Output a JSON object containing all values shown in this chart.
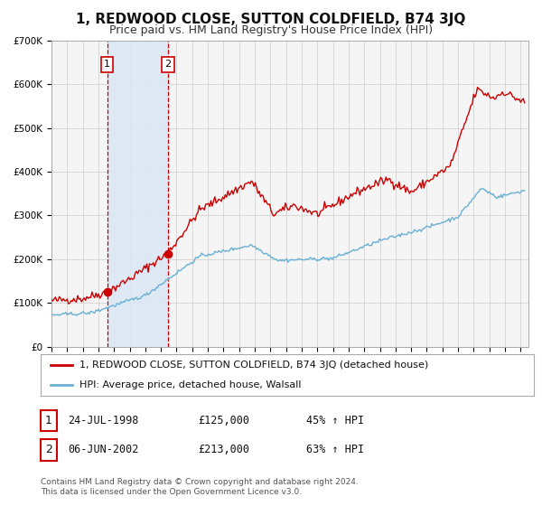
{
  "title": "1, REDWOOD CLOSE, SUTTON COLDFIELD, B74 3JQ",
  "subtitle": "Price paid vs. HM Land Registry's House Price Index (HPI)",
  "ylim": [
    0,
    700000
  ],
  "yticks": [
    0,
    100000,
    200000,
    300000,
    400000,
    500000,
    600000,
    700000
  ],
  "ytick_labels": [
    "£0",
    "£100K",
    "£200K",
    "£300K",
    "£400K",
    "£500K",
    "£600K",
    "£700K"
  ],
  "xlim_start": 1995.0,
  "xlim_end": 2025.5,
  "background_color": "#ffffff",
  "plot_bg_color": "#f5f5f5",
  "grid_color": "#cccccc",
  "sale1_date": 1998.56,
  "sale1_price": 125000,
  "sale1_label": "1",
  "sale2_date": 2002.43,
  "sale2_price": 213000,
  "sale2_label": "2",
  "sale_dot_color": "#cc0000",
  "line_color": "#cc0000",
  "hpi_line_color": "#6ab0d4",
  "shade_color": "#dbe8f5",
  "legend_line1": "1, REDWOOD CLOSE, SUTTON COLDFIELD, B74 3JQ (detached house)",
  "legend_line2": "HPI: Average price, detached house, Walsall",
  "table_row1": [
    "1",
    "24-JUL-1998",
    "£125,000",
    "45% ↑ HPI"
  ],
  "table_row2": [
    "2",
    "06-JUN-2002",
    "£213,000",
    "63% ↑ HPI"
  ],
  "footnote1": "Contains HM Land Registry data © Crown copyright and database right 2024.",
  "footnote2": "This data is licensed under the Open Government Licence v3.0.",
  "title_fontsize": 11,
  "subtitle_fontsize": 9,
  "tick_fontsize": 7.5,
  "legend_fontsize": 8,
  "table_fontsize": 8.5,
  "footnote_fontsize": 6.5
}
